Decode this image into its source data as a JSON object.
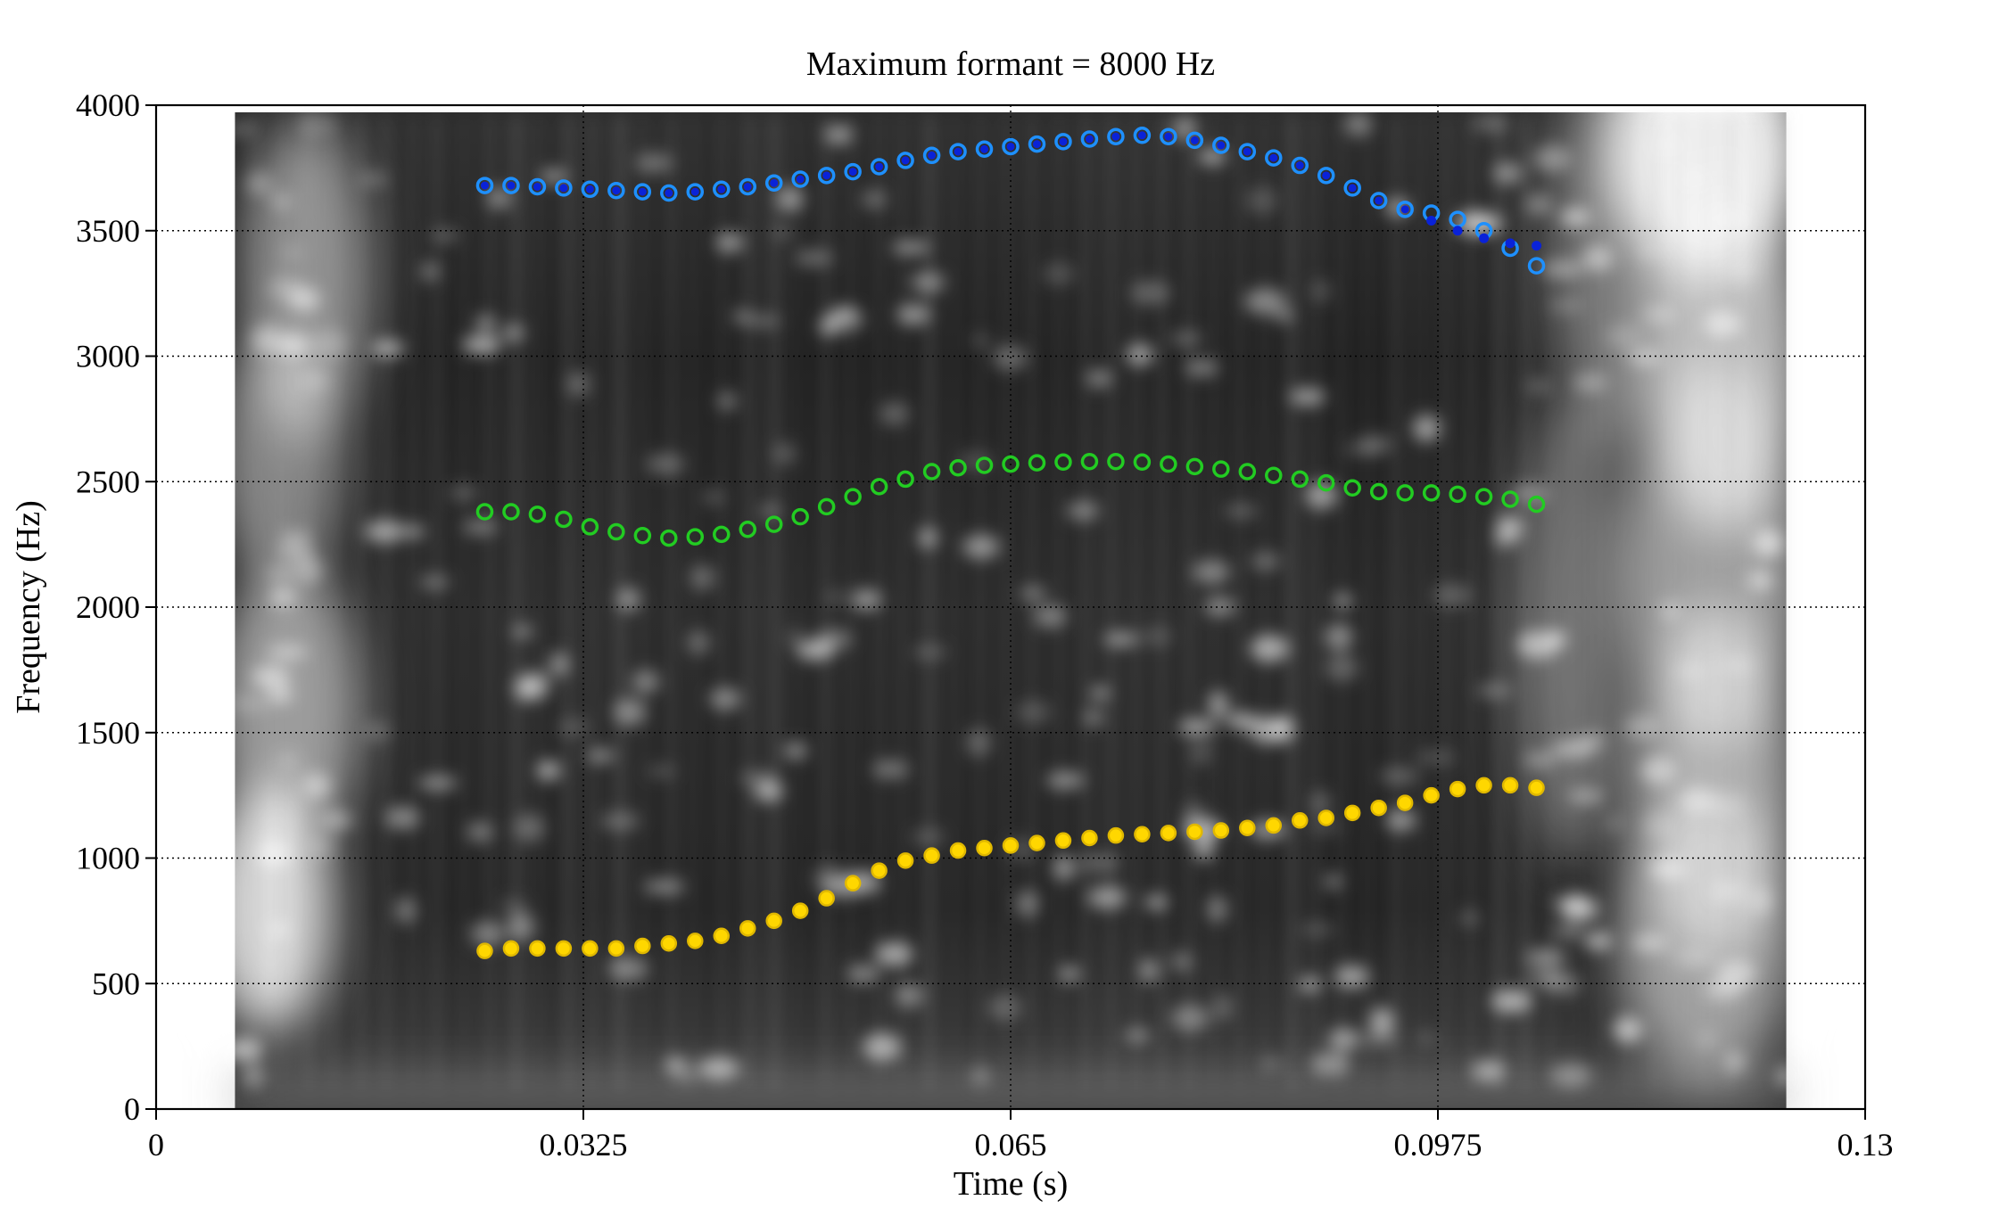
{
  "chart_data": {
    "type": "scatter",
    "title": "Maximum formant = 8000 Hz",
    "xlabel": "Time (s)",
    "ylabel": "Frequency (Hz)",
    "xlim": [
      0,
      0.13
    ],
    "ylim": [
      0,
      4000
    ],
    "x_ticks": [
      "0",
      "0.0325",
      "0.065",
      "0.0975",
      "0.13"
    ],
    "x_tick_values": [
      0,
      0.0325,
      0.065,
      0.0975,
      0.13
    ],
    "y_ticks": [
      "0",
      "500",
      "1000",
      "1500",
      "2000",
      "2500",
      "3000",
      "3500",
      "4000"
    ],
    "y_tick_values": [
      0,
      500,
      1000,
      1500,
      2000,
      2500,
      3000,
      3500,
      4000
    ],
    "grid": true,
    "background": "spectrogram (grayscale)",
    "spectrogram_time_range": [
      0.006,
      0.124
    ],
    "colors": {
      "f1": "#ffd700",
      "f2": "#22cc22",
      "f3_open": "#1e90ff",
      "f3_filled": "#0a22d8"
    },
    "x": [
      0.025,
      0.027,
      0.029,
      0.031,
      0.033,
      0.035,
      0.037,
      0.039,
      0.041,
      0.043,
      0.045,
      0.047,
      0.049,
      0.051,
      0.053,
      0.055,
      0.057,
      0.059,
      0.061,
      0.063,
      0.065,
      0.067,
      0.069,
      0.071,
      0.073,
      0.075,
      0.077,
      0.079,
      0.081,
      0.083,
      0.085,
      0.087,
      0.089,
      0.091,
      0.093,
      0.095,
      0.097,
      0.099,
      0.101,
      0.103,
      0.105
    ],
    "series": [
      {
        "values": [
          630,
          640,
          640,
          640,
          640,
          640,
          650,
          660,
          670,
          690,
          720,
          750,
          790,
          840,
          900,
          950,
          990,
          1010,
          1030,
          1040,
          1050,
          1060,
          1070,
          1080,
          1090,
          1095,
          1100,
          1105,
          1110,
          1120,
          1130,
          1150,
          1160,
          1180,
          1200,
          1220,
          1250,
          1275,
          1290,
          1290,
          1280
        ]
      },
      {
        "values": [
          2380,
          2380,
          2370,
          2350,
          2320,
          2300,
          2285,
          2275,
          2280,
          2290,
          2310,
          2330,
          2360,
          2400,
          2440,
          2480,
          2510,
          2540,
          2555,
          2565,
          2570,
          2575,
          2578,
          2580,
          2580,
          2578,
          2570,
          2560,
          2550,
          2540,
          2525,
          2510,
          2495,
          2475,
          2460,
          2455,
          2455,
          2450,
          2440,
          2430,
          2410
        ]
      },
      {
        "values": [
          3680,
          3680,
          3675,
          3670,
          3665,
          3660,
          3655,
          3650,
          3655,
          3665,
          3675,
          3690,
          3705,
          3720,
          3735,
          3755,
          3780,
          3800,
          3815,
          3825,
          3835,
          3845,
          3855,
          3865,
          3875,
          3880,
          3875,
          3860,
          3840,
          3815,
          3790,
          3760,
          3720,
          3670,
          3620,
          3585,
          3570,
          3545,
          3500,
          3430,
          3360
        ]
      },
      {
        "x": [
          0.097,
          0.099,
          0.101,
          0.103,
          0.105
        ],
        "values": [
          3540,
          3500,
          3470,
          3450,
          3440
        ]
      }
    ]
  }
}
